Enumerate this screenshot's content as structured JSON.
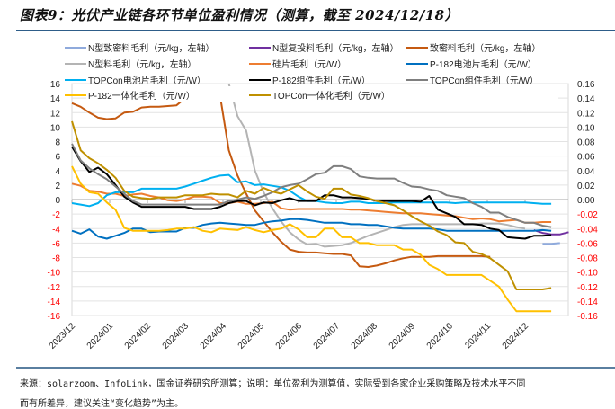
{
  "title": "图表9：光伏产业链各环节单位盈利情况（测算，截至 2024/12/18）",
  "footnote": {
    "line1": "来源：solarzoom、InfoLink，国金证券研究所测算；说明：单位盈利为测算值，实际受到各家企业采购策略及技术水平不同",
    "line2": "而有所差异，建议关注“变化趋势”为主。"
  },
  "chart_data": {
    "type": "line",
    "title": "光伏产业链各环节单位盈利情况（测算，截至 2024/12/18）",
    "xlabel": "",
    "ylabel_left": "元/kg",
    "ylabel_right": "元/W",
    "x_ticks": [
      "2023/12",
      "2024/01",
      "2024/02",
      "2024/03",
      "2024/04",
      "2024/05",
      "2024/06",
      "2024/07",
      "2024/08",
      "2024/09",
      "2024/10",
      "2024/11",
      "2024/12"
    ],
    "ylim_left": [
      -16,
      16
    ],
    "y_ticks_left": [
      "16",
      "14",
      "12",
      "10",
      "8",
      "6",
      "4",
      "2",
      "0",
      "-2",
      "-4",
      "-6",
      "-8",
      "-10",
      "-12",
      "-14",
      "-16"
    ],
    "ylim_right": [
      -0.16,
      0.16
    ],
    "y_ticks_right": [
      "0.16",
      "0.14",
      "0.12",
      "0.10",
      "0.08",
      "0.06",
      "0.04",
      "0.02",
      "0.00",
      "-0.02",
      "-0.04",
      "-0.06",
      "-0.08",
      "-0.10",
      "-0.12",
      "-0.14",
      "-0.16"
    ],
    "negative_tick_color": "#ff0000",
    "grid": true,
    "legend_placement": "top",
    "x_note": "weekly points; index 0 = 2023/12 start, each month ≈ 4.3 weeks",
    "series": [
      {
        "name": "N型致密料毛利（元/kg，左轴）",
        "color": "#8faadc",
        "axis": "left",
        "start": 54,
        "values": [
          -6.1,
          -6.1,
          -6.0
        ]
      },
      {
        "name": "N型复投料毛利（元/kg，左轴）",
        "color": "#7030a0",
        "axis": "left",
        "start": 53,
        "values": [
          -4.2,
          -4.6,
          -4.8,
          -4.8,
          -4.5
        ]
      },
      {
        "name": "致密料毛利（元/kg，左轴）",
        "color": "#c55a11",
        "axis": "left",
        "start": 0,
        "values": [
          13.3,
          12.8,
          12.0,
          11.3,
          11.1,
          11.2,
          12.0,
          12.1,
          12.7,
          12.8,
          12.8,
          12.9,
          13.0,
          14.0,
          13.9,
          13.8,
          14.1,
          14.3,
          6.8,
          3.3,
          0.8,
          -1.5,
          -3.0,
          -4.5,
          -5.8,
          -6.9,
          -7.2,
          -7.3,
          -7.3,
          -7.4,
          -7.5,
          -7.5,
          -7.7,
          -9.2,
          -9.3,
          -9.1,
          -8.8,
          -8.4,
          -8.1,
          -7.9,
          -7.9,
          -7.9,
          -7.8,
          -7.8,
          -7.8,
          -7.8,
          -7.8,
          -7.8,
          -7.9
        ]
      },
      {
        "name": "N型料毛利（元/kg，左轴）",
        "color": "#b4b4b4",
        "axis": "left",
        "start": 18,
        "values": [
          16,
          11.5,
          9.5,
          4.0,
          1.0,
          -1.2,
          -3.0,
          -4.5,
          -5.5,
          -6.2,
          -6.1,
          -6.5,
          -6.4,
          -6.3,
          -6.0,
          -5.5,
          -5.0,
          -4.6,
          -4.2,
          -3.8,
          -3.5,
          -3.4,
          -3.4,
          -3.4,
          -3.4,
          -3.4,
          -3.4,
          -3.4,
          -3.4,
          -3.3,
          -3.3,
          -3.3,
          -3.5,
          -3.8,
          -4.0
        ]
      },
      {
        "name": "硅片毛利（元/W）",
        "color": "#ed7d31",
        "axis": "right",
        "start": 0,
        "values": [
          0.022,
          0.019,
          0.012,
          0.011,
          0.008,
          0.008,
          0.005,
          0.007,
          0.008,
          0.005,
          0.003,
          -0.001,
          -0.002,
          0.0,
          0.004,
          0.004,
          0.003,
          -0.005,
          -0.005,
          -0.003,
          -0.006,
          -0.006,
          -0.005,
          -0.003,
          -0.012,
          -0.014,
          -0.013,
          -0.013,
          -0.013,
          -0.013,
          -0.013,
          -0.013,
          -0.014,
          -0.014,
          -0.015,
          -0.016,
          -0.017,
          -0.018,
          -0.019,
          -0.019,
          -0.019,
          -0.02,
          -0.021,
          -0.022,
          -0.023,
          -0.025,
          -0.027,
          -0.026,
          -0.027,
          -0.03,
          -0.029,
          -0.028,
          -0.032,
          -0.032,
          -0.031,
          -0.031
        ]
      },
      {
        "name": "P-182电池片毛利（元/W）",
        "color": "#0070c0",
        "axis": "right",
        "start": 0,
        "values": [
          -0.043,
          -0.047,
          -0.041,
          -0.051,
          -0.054,
          -0.05,
          -0.046,
          -0.04,
          -0.04,
          -0.045,
          -0.044,
          -0.044,
          -0.044,
          -0.039,
          -0.039,
          -0.035,
          -0.033,
          -0.032,
          -0.033,
          -0.034,
          -0.035,
          -0.035,
          -0.032,
          -0.03,
          -0.029,
          -0.027,
          -0.027,
          -0.028,
          -0.03,
          -0.032,
          -0.032,
          -0.032,
          -0.034,
          -0.034,
          -0.035,
          -0.035,
          -0.037,
          -0.039,
          -0.04,
          -0.04,
          -0.04,
          -0.04,
          -0.041,
          -0.043,
          -0.043,
          -0.043,
          -0.043,
          -0.043,
          -0.043,
          -0.043,
          -0.043,
          -0.043,
          -0.043,
          -0.043,
          -0.042,
          -0.043
        ]
      },
      {
        "name": "TOPCon电池片毛利（元/W）",
        "color": "#00b0f0",
        "axis": "right",
        "start": 0,
        "values": [
          -0.005,
          -0.007,
          -0.009,
          -0.005,
          0.006,
          0.01,
          0.01,
          0.01,
          0.015,
          0.015,
          0.015,
          0.015,
          0.015,
          0.018,
          0.022,
          0.026,
          0.03,
          0.033,
          0.034,
          0.024,
          0.025,
          0.02,
          0.021,
          0.019,
          0.017,
          0.012,
          0.004,
          -0.002,
          -0.002,
          -0.004,
          -0.005,
          -0.005,
          -0.003,
          -0.003,
          -0.005,
          -0.005,
          -0.005,
          -0.004,
          -0.004,
          -0.004,
          -0.004,
          -0.004,
          -0.004,
          -0.004,
          -0.005,
          -0.004,
          -0.004,
          -0.004,
          -0.004,
          -0.004,
          -0.004,
          -0.004,
          -0.004,
          -0.005,
          -0.006,
          -0.006
        ]
      },
      {
        "name": "P-182组件毛利（元/W）",
        "color": "#000000",
        "axis": "right",
        "start": 0,
        "values": [
          0.073,
          0.053,
          0.038,
          0.044,
          0.035,
          0.02,
          0.004,
          -0.004,
          -0.01,
          -0.01,
          -0.01,
          -0.01,
          -0.01,
          -0.01,
          -0.013,
          -0.013,
          -0.013,
          -0.01,
          -0.005,
          -0.002,
          -0.002,
          -0.008,
          -0.004,
          -0.005,
          -0.001,
          0.002,
          -0.002,
          -0.002,
          -0.002,
          0.006,
          0.006,
          0.003,
          0.003,
          0.002,
          0.001,
          -0.002,
          -0.002,
          -0.002,
          -0.002,
          -0.002,
          -0.003,
          0.005,
          -0.014,
          -0.019,
          -0.024,
          -0.034,
          -0.034,
          -0.035,
          -0.04,
          -0.042,
          -0.052,
          -0.053,
          -0.054,
          -0.05,
          -0.05,
          -0.049
        ]
      },
      {
        "name": "TOPCon组件毛利（元/W）",
        "color": "#7f7f7f",
        "axis": "right",
        "start": 0,
        "values": [
          0.077,
          0.054,
          0.043,
          0.035,
          0.028,
          0.018,
          0.008,
          -0.002,
          -0.007,
          -0.007,
          -0.007,
          -0.007,
          -0.007,
          -0.007,
          -0.007,
          -0.007,
          -0.007,
          -0.007,
          -0.002,
          0.0,
          0.003,
          0.001,
          0.005,
          0.01,
          0.017,
          0.02,
          0.022,
          0.028,
          0.035,
          0.037,
          0.046,
          0.046,
          0.042,
          0.032,
          0.03,
          0.029,
          0.029,
          0.029,
          0.023,
          0.018,
          0.017,
          0.014,
          0.012,
          0.006,
          0.004,
          0.002,
          -0.005,
          -0.01,
          -0.018,
          -0.018,
          -0.024,
          -0.028,
          -0.032,
          -0.032,
          -0.036,
          -0.038
        ]
      },
      {
        "name": "P-182一体化毛利（元/W）",
        "color": "#ffc000",
        "axis": "right",
        "start": 0,
        "values": [
          0.046,
          0.022,
          0.01,
          0.008,
          -0.004,
          -0.014,
          -0.039,
          -0.043,
          -0.043,
          -0.043,
          -0.043,
          -0.042,
          -0.04,
          -0.04,
          -0.038,
          -0.043,
          -0.045,
          -0.04,
          -0.041,
          -0.042,
          -0.038,
          -0.042,
          -0.045,
          -0.042,
          -0.04,
          -0.034,
          -0.041,
          -0.052,
          -0.052,
          -0.04,
          -0.04,
          -0.052,
          -0.052,
          -0.06,
          -0.06,
          -0.063,
          -0.063,
          -0.063,
          -0.069,
          -0.069,
          -0.076,
          -0.09,
          -0.096,
          -0.104,
          -0.104,
          -0.104,
          -0.104,
          -0.104,
          -0.112,
          -0.12,
          -0.138,
          -0.154,
          -0.154,
          -0.154,
          -0.154,
          -0.154
        ]
      },
      {
        "name": "TOPCon一体化毛利（元/W）",
        "color": "#bf9000",
        "axis": "right",
        "start": 0,
        "values": [
          0.108,
          0.068,
          0.057,
          0.05,
          0.041,
          0.03,
          0.012,
          0.004,
          0.002,
          0.001,
          0.003,
          0.003,
          0.003,
          0.006,
          0.006,
          0.006,
          0.008,
          0.007,
          0.007,
          0.003,
          0.012,
          0.008,
          0.016,
          0.011,
          0.008,
          0.014,
          0.02,
          0.011,
          0.004,
          0.001,
          0.015,
          0.015,
          0.007,
          0.005,
          0.002,
          -0.002,
          -0.005,
          -0.008,
          -0.015,
          -0.023,
          -0.03,
          -0.036,
          -0.044,
          -0.049,
          -0.059,
          -0.06,
          -0.072,
          -0.075,
          -0.081,
          -0.09,
          -0.099,
          -0.124,
          -0.124,
          -0.124,
          -0.124,
          -0.122
        ]
      }
    ]
  }
}
